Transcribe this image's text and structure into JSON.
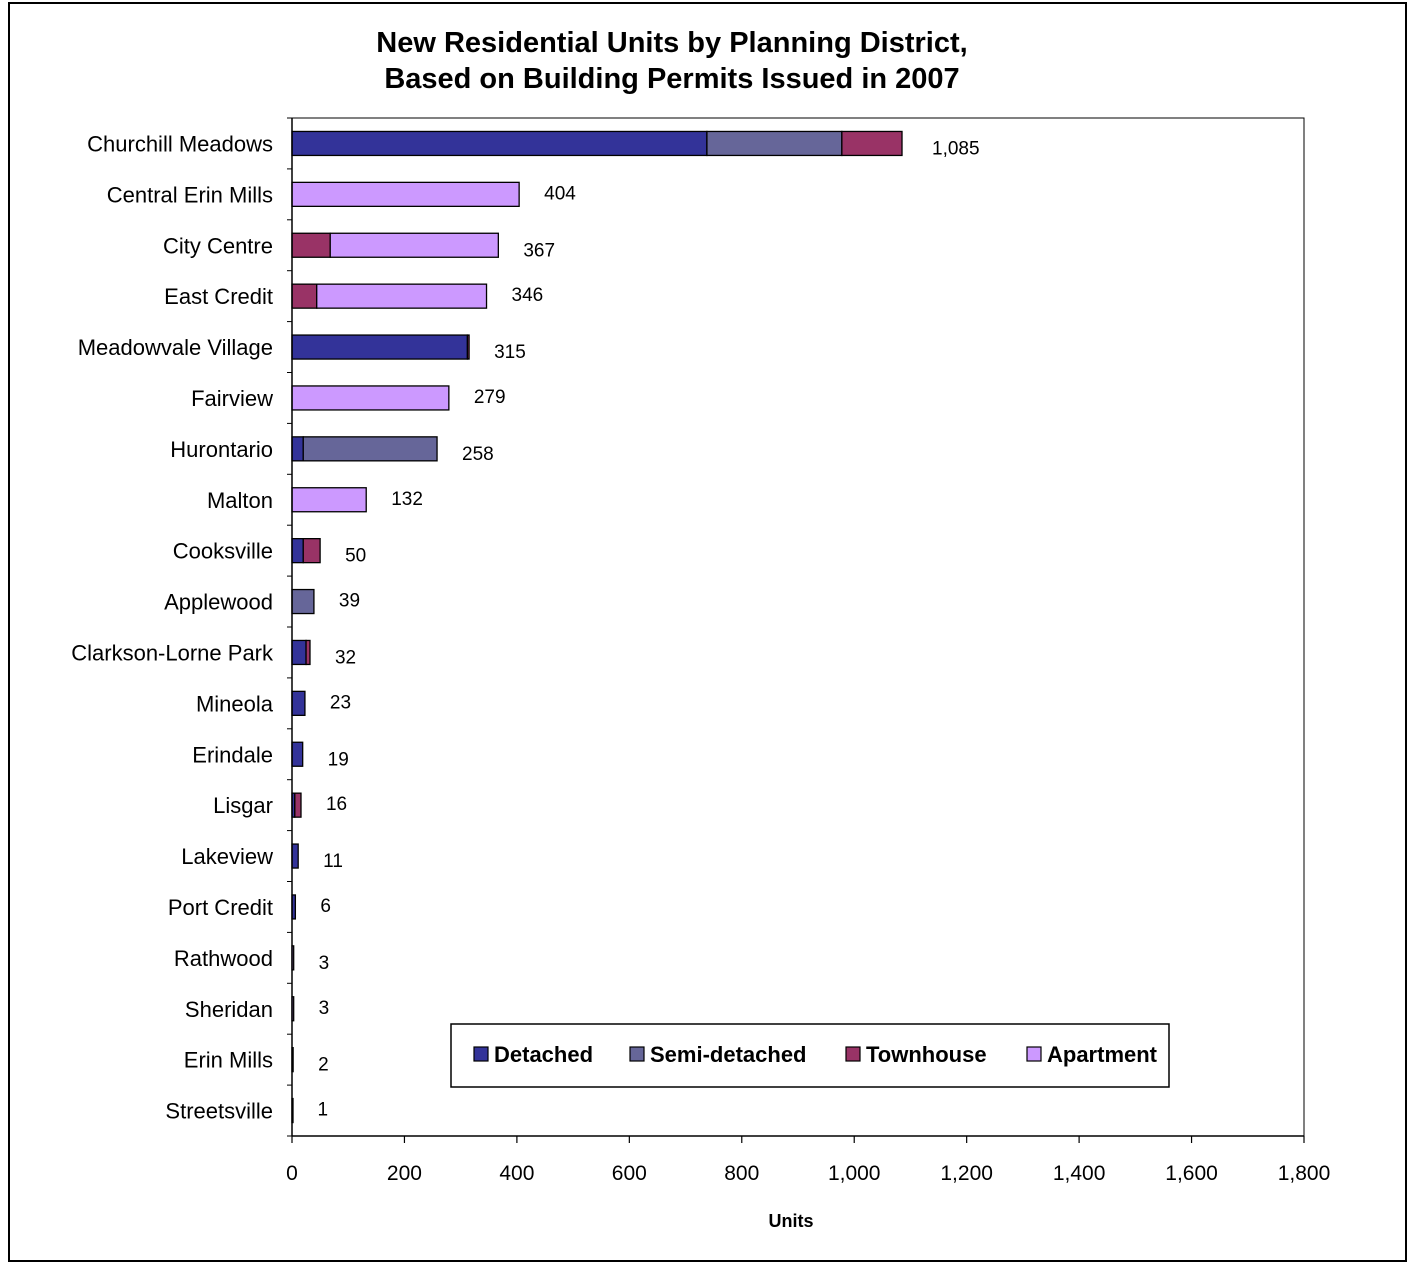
{
  "chart_data": {
    "type": "bar",
    "orientation": "horizontal",
    "stacked": true,
    "title": "New Residential Units by Planning District,",
    "subtitle": "Based on Building Permits Issued in 2007",
    "xlabel": "Units",
    "ylabel": "",
    "xlim": [
      0,
      1800
    ],
    "x_ticks": [
      "0",
      "200",
      "400",
      "600",
      "800",
      "1,000",
      "1,200",
      "1,400",
      "1,600",
      "1,800"
    ],
    "x_tick_values": [
      0,
      200,
      400,
      600,
      800,
      1000,
      1200,
      1400,
      1600,
      1800
    ],
    "grid": false,
    "legend_position": "bottom-right",
    "categories": [
      "Churchill Meadows",
      "Central Erin Mills",
      "City Centre",
      "East Credit",
      "Meadowvale Village",
      "Fairview",
      "Hurontario",
      "Malton",
      "Cooksville",
      "Applewood",
      "Clarkson-Lorne Park",
      "Mineola",
      "Erindale",
      "Lisgar",
      "Lakeview",
      "Port Credit",
      "Rathwood",
      "Sheridan",
      "Erin Mills",
      "Streetsville"
    ],
    "series": [
      {
        "name": "Detached",
        "color": "#333399",
        "values": [
          738,
          0,
          0,
          0,
          312,
          0,
          20,
          0,
          20,
          0,
          25,
          23,
          19,
          5,
          11,
          6,
          0,
          0,
          0,
          0
        ]
      },
      {
        "name": "Semi-detached",
        "color": "#666699",
        "values": [
          240,
          0,
          0,
          0,
          0,
          0,
          238,
          0,
          0,
          39,
          0,
          0,
          0,
          0,
          0,
          0,
          0,
          0,
          0,
          0
        ]
      },
      {
        "name": "Townhouse",
        "color": "#993366",
        "values": [
          107,
          0,
          68,
          44,
          3,
          0,
          0,
          0,
          30,
          0,
          7,
          0,
          0,
          11,
          0,
          0,
          0,
          0,
          0,
          0
        ]
      },
      {
        "name": "Apartment",
        "color": "#CC99FF",
        "values": [
          0,
          404,
          299,
          302,
          0,
          279,
          0,
          132,
          0,
          0,
          0,
          0,
          0,
          0,
          0,
          0,
          3,
          3,
          2,
          1
        ]
      }
    ],
    "totals": [
      1085,
      404,
      367,
      346,
      315,
      279,
      258,
      132,
      50,
      39,
      32,
      23,
      19,
      16,
      11,
      6,
      3,
      3,
      2,
      1
    ],
    "total_labels": [
      "1,085",
      "404",
      "367",
      "346",
      "315",
      "279",
      "258",
      "132",
      "50",
      "39",
      "32",
      "23",
      "19",
      "16",
      "11",
      "6",
      "3",
      "3",
      "2",
      "1"
    ]
  }
}
